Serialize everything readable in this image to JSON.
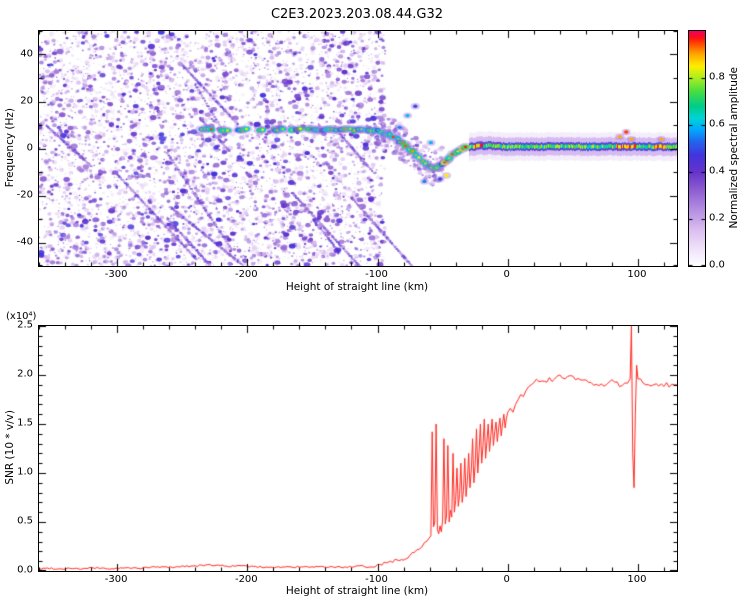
{
  "chart_data": [
    {
      "type": "heatmap",
      "title": "C2E3.2023.203.08.44.G32",
      "xlabel": "Height of straight line (km)",
      "ylabel": "Frequency (Hz)",
      "xlim": [
        -360,
        130
      ],
      "ylim": [
        -50,
        50
      ],
      "xticks": [
        -300,
        -200,
        -100,
        0,
        100
      ],
      "yticks": [
        -40,
        -20,
        0,
        20,
        40
      ],
      "colorbar": {
        "label": "Normalized spectral amplitude",
        "lim": [
          0,
          1
        ],
        "tick_values": [
          0,
          0.2,
          0.4,
          0.6,
          0.8
        ],
        "tick_labels": [
          "0.0",
          "0.2",
          "0.4",
          "0.6",
          "0.8"
        ]
      },
      "colormap_stops": [
        [
          0.0,
          "#ffffff"
        ],
        [
          0.06,
          "#f3e8fb"
        ],
        [
          0.15,
          "#dcc0f0"
        ],
        [
          0.25,
          "#b088e0"
        ],
        [
          0.33,
          "#8a5ad0"
        ],
        [
          0.4,
          "#6633cc"
        ],
        [
          0.47,
          "#4433dd"
        ],
        [
          0.53,
          "#2266ee"
        ],
        [
          0.58,
          "#00aaff"
        ],
        [
          0.63,
          "#00d4d4"
        ],
        [
          0.68,
          "#00cc88"
        ],
        [
          0.74,
          "#44dd44"
        ],
        [
          0.8,
          "#aaee22"
        ],
        [
          0.85,
          "#ffee00"
        ],
        [
          0.9,
          "#ffaa00"
        ],
        [
          0.94,
          "#ff5500"
        ],
        [
          0.97,
          "#ff1111"
        ],
        [
          1.0,
          "#ee0066"
        ]
      ],
      "noise": {
        "x_range": [
          -360,
          -94
        ],
        "dots": 5200,
        "blobs": 420,
        "streaks": 12,
        "fuzz_dots": 260
      },
      "track": [
        [
          -235,
          8.2
        ],
        [
          -220,
          8.0
        ],
        [
          -205,
          8.3
        ],
        [
          -190,
          8.0
        ],
        [
          -175,
          8.2
        ],
        [
          -160,
          8.0
        ],
        [
          -145,
          8.1
        ],
        [
          -130,
          8.0
        ],
        [
          -115,
          8.0
        ],
        [
          -105,
          7.8
        ],
        [
          -100,
          7.5
        ],
        [
          -95,
          6.8
        ],
        [
          -90,
          5.5
        ],
        [
          -85,
          4.0
        ],
        [
          -80,
          2.0
        ],
        [
          -75,
          -0.5
        ],
        [
          -70,
          -3.0
        ],
        [
          -65,
          -5.5
        ],
        [
          -60,
          -7.5
        ],
        [
          -57,
          -8.3
        ],
        [
          -54,
          -8.0
        ],
        [
          -50,
          -6.5
        ],
        [
          -46,
          -4.5
        ],
        [
          -42,
          -2.5
        ],
        [
          -38,
          -1.0
        ],
        [
          -34,
          0.0
        ],
        [
          -30,
          0.6
        ],
        [
          -25,
          1.0
        ],
        [
          -20,
          1.2
        ],
        [
          -15,
          1.2
        ],
        [
          -10,
          1.0
        ],
        [
          -5,
          0.8
        ],
        [
          0,
          0.8
        ],
        [
          20,
          0.8
        ],
        [
          40,
          0.9
        ],
        [
          60,
          0.8
        ],
        [
          80,
          0.9
        ],
        [
          100,
          0.8
        ],
        [
          130,
          0.8
        ]
      ],
      "gaps": [
        [
          -227,
          -222
        ],
        [
          -214,
          -209
        ],
        [
          -199,
          -193
        ],
        [
          -186,
          -181
        ],
        [
          -172,
          -167
        ],
        [
          -158,
          -154
        ]
      ],
      "band": {
        "x_range": [
          -30,
          130
        ]
      },
      "red_windows": [
        [
          -26,
          -19
        ],
        [
          83,
          98
        ],
        [
          112,
          121
        ]
      ],
      "outliers": [
        {
          "x": -83,
          "f": 9,
          "a": 0.55
        },
        {
          "x": -77,
          "f": 14,
          "a": 0.6
        },
        {
          "x": -71,
          "f": 18,
          "a": 0.5
        },
        {
          "x": -64,
          "f": -14,
          "a": 0.55
        },
        {
          "x": -59,
          "f": 2.5,
          "a": 0.6
        },
        {
          "x": -52,
          "f": -13,
          "a": 0.5
        },
        {
          "x": -47,
          "f": -11.5,
          "a": 0.85
        },
        {
          "x": 86,
          "f": 5,
          "a": 0.9
        },
        {
          "x": 91,
          "f": 7,
          "a": 0.95
        },
        {
          "x": 95,
          "f": 4,
          "a": 0.9
        },
        {
          "x": 118,
          "f": 4,
          "a": 0.9
        }
      ]
    },
    {
      "type": "line",
      "xlabel": "Height of straight line (km)",
      "ylabel": "SNR (10 * v/v)",
      "scale_label": "(x10⁴)",
      "color": "#ff2a22",
      "xlim": [
        -360,
        130
      ],
      "ylim": [
        0,
        2.5
      ],
      "xticks": [
        -300,
        -200,
        -100,
        0,
        100
      ],
      "ytick_values": [
        0,
        0.5,
        1,
        1.5,
        2,
        2.5
      ],
      "ytick_labels": [
        "0.0",
        "0.5",
        "1.0",
        "1.5",
        "2.0",
        "2.5"
      ],
      "points": [
        [
          -360,
          0.02
        ],
        [
          -352,
          0.03
        ],
        [
          -344,
          0.02
        ],
        [
          -336,
          0.03
        ],
        [
          -328,
          0.02
        ],
        [
          -320,
          0.03
        ],
        [
          -312,
          0.03
        ],
        [
          -304,
          0.02
        ],
        [
          -296,
          0.03
        ],
        [
          -288,
          0.03
        ],
        [
          -280,
          0.03
        ],
        [
          -272,
          0.04
        ],
        [
          -264,
          0.04
        ],
        [
          -256,
          0.04
        ],
        [
          -248,
          0.05
        ],
        [
          -240,
          0.05
        ],
        [
          -232,
          0.06
        ],
        [
          -224,
          0.06
        ],
        [
          -216,
          0.05
        ],
        [
          -208,
          0.05
        ],
        [
          -200,
          0.05
        ],
        [
          -192,
          0.04
        ],
        [
          -184,
          0.04
        ],
        [
          -176,
          0.04
        ],
        [
          -168,
          0.04
        ],
        [
          -160,
          0.04
        ],
        [
          -152,
          0.04
        ],
        [
          -144,
          0.04
        ],
        [
          -136,
          0.04
        ],
        [
          -128,
          0.04
        ],
        [
          -120,
          0.04
        ],
        [
          -112,
          0.05
        ],
        [
          -106,
          0.05
        ],
        [
          -100,
          0.06
        ],
        [
          -95,
          0.08
        ],
        [
          -90,
          0.1
        ],
        [
          -85,
          0.11
        ],
        [
          -80,
          0.13
        ],
        [
          -75,
          0.16
        ],
        [
          -70,
          0.2
        ],
        [
          -66,
          0.25
        ],
        [
          -62,
          0.3
        ],
        [
          -59,
          0.36
        ],
        [
          -58,
          1.42
        ],
        [
          -57,
          0.45
        ],
        [
          -56,
          0.5
        ],
        [
          -55,
          1.5
        ],
        [
          -54,
          0.42
        ],
        [
          -53,
          0.38
        ],
        [
          -52,
          0.46
        ],
        [
          -51,
          0.4
        ],
        [
          -50,
          0.52
        ],
        [
          -49,
          1.35
        ],
        [
          -48,
          0.48
        ],
        [
          -47,
          0.56
        ],
        [
          -46,
          1.28
        ],
        [
          -45,
          0.5
        ],
        [
          -44,
          0.62
        ],
        [
          -43,
          0.55
        ],
        [
          -42,
          1.2
        ],
        [
          -41,
          0.6
        ],
        [
          -40,
          0.72
        ],
        [
          -39,
          1.05
        ],
        [
          -38,
          0.66
        ],
        [
          -37,
          0.78
        ],
        [
          -36,
          1.1
        ],
        [
          -35,
          0.7
        ],
        [
          -34,
          0.82
        ],
        [
          -33,
          1.15
        ],
        [
          -32,
          0.76
        ],
        [
          -31,
          0.92
        ],
        [
          -30,
          1.2
        ],
        [
          -29,
          0.85
        ],
        [
          -28,
          1.02
        ],
        [
          -27,
          1.35
        ],
        [
          -26,
          0.9
        ],
        [
          -25,
          1.08
        ],
        [
          -24,
          1.45
        ],
        [
          -23,
          1.0
        ],
        [
          -22,
          1.22
        ],
        [
          -21,
          1.5
        ],
        [
          -20,
          1.1
        ],
        [
          -19,
          1.28
        ],
        [
          -18,
          1.55
        ],
        [
          -17,
          1.15
        ],
        [
          -16,
          1.32
        ],
        [
          -15,
          1.5
        ],
        [
          -14,
          1.22
        ],
        [
          -13,
          1.38
        ],
        [
          -12,
          1.55
        ],
        [
          -11,
          1.28
        ],
        [
          -10,
          1.42
        ],
        [
          -9,
          1.52
        ],
        [
          -8,
          1.32
        ],
        [
          -7,
          1.46
        ],
        [
          -6,
          1.56
        ],
        [
          -5,
          1.38
        ],
        [
          -4,
          1.5
        ],
        [
          -3,
          1.6
        ],
        [
          -2,
          1.46
        ],
        [
          -1,
          1.56
        ],
        [
          0,
          1.62
        ],
        [
          2,
          1.66
        ],
        [
          4,
          1.62
        ],
        [
          6,
          1.7
        ],
        [
          8,
          1.75
        ],
        [
          10,
          1.8
        ],
        [
          12,
          1.78
        ],
        [
          14,
          1.84
        ],
        [
          16,
          1.88
        ],
        [
          18,
          1.9
        ],
        [
          20,
          1.92
        ],
        [
          24,
          1.95
        ],
        [
          28,
          1.93
        ],
        [
          32,
          1.97
        ],
        [
          36,
          1.95
        ],
        [
          40,
          2.0
        ],
        [
          44,
          1.97
        ],
        [
          48,
          2.0
        ],
        [
          52,
          1.95
        ],
        [
          56,
          1.93
        ],
        [
          60,
          1.95
        ],
        [
          64,
          1.9
        ],
        [
          68,
          1.92
        ],
        [
          72,
          1.88
        ],
        [
          76,
          1.9
        ],
        [
          80,
          1.93
        ],
        [
          84,
          1.9
        ],
        [
          88,
          1.92
        ],
        [
          92,
          1.9
        ],
        [
          94,
          1.96
        ],
        [
          95,
          2.5
        ],
        [
          96,
          1.2
        ],
        [
          97,
          0.85
        ],
        [
          98,
          1.6
        ],
        [
          99,
          2.1
        ],
        [
          100,
          1.96
        ],
        [
          104,
          1.92
        ],
        [
          108,
          1.9
        ],
        [
          112,
          1.92
        ],
        [
          116,
          1.9
        ],
        [
          120,
          1.91
        ],
        [
          124,
          1.9
        ],
        [
          128,
          1.9
        ],
        [
          130,
          1.9
        ]
      ]
    }
  ]
}
